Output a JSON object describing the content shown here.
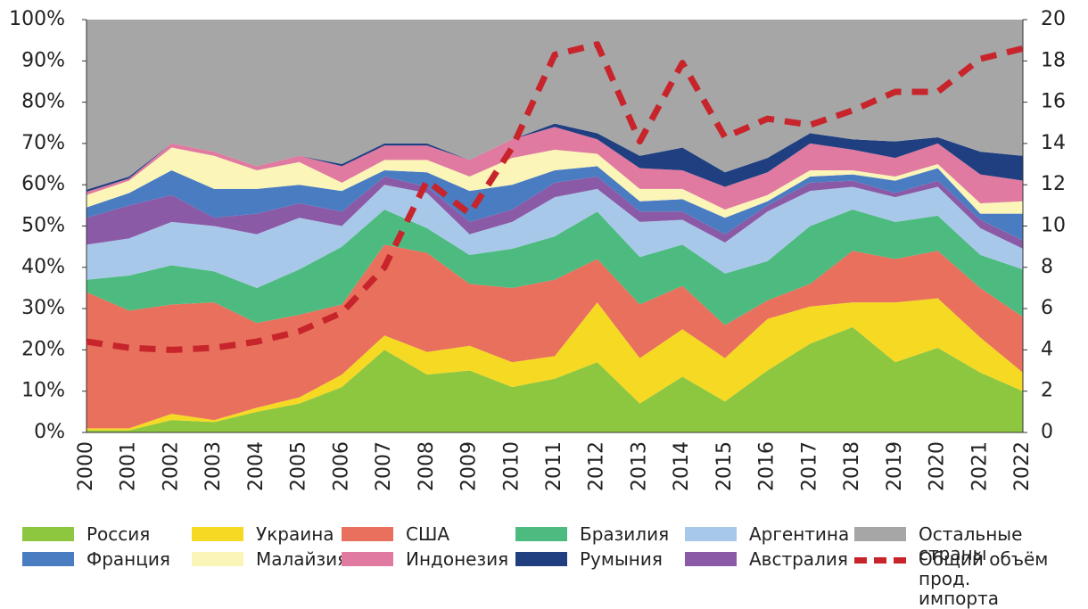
{
  "chart_data": {
    "type": "stacked_area",
    "categories": [
      "2000",
      "2001",
      "2002",
      "2003",
      "2004",
      "2005",
      "2006",
      "2007",
      "2008",
      "2009",
      "2010",
      "2011",
      "2012",
      "2013",
      "2014",
      "2015",
      "2016",
      "2017",
      "2018",
      "2019",
      "2020",
      "2021",
      "2022"
    ],
    "series": [
      {
        "name": "Россия",
        "color": "#8dc63f",
        "values": [
          0.5,
          0.5,
          3,
          2.5,
          5,
          7,
          11,
          20,
          14,
          15,
          11,
          13,
          17,
          7,
          13.5,
          7.5,
          15,
          21.5,
          25.5,
          17,
          20.5,
          14.5,
          10
        ]
      },
      {
        "name": "Украина",
        "color": "#f5d923",
        "values": [
          0.5,
          0.5,
          1.5,
          0.5,
          1,
          1.5,
          3,
          3.5,
          5.5,
          6,
          6,
          5.5,
          14.5,
          11,
          11.5,
          10.5,
          12.5,
          9,
          6,
          14.5,
          12,
          8.5,
          4.5
        ]
      },
      {
        "name": "США",
        "color": "#e8705c",
        "values": [
          33,
          28.5,
          26.5,
          28.5,
          20.5,
          20,
          17,
          22,
          24,
          15,
          18,
          18.5,
          10.5,
          13,
          10.5,
          8,
          4.5,
          5.5,
          12.5,
          10.5,
          11.5,
          12,
          13.5
        ]
      },
      {
        "name": "Бразилия",
        "color": "#4dbb7f",
        "values": [
          3,
          8.5,
          9.5,
          7.5,
          8.5,
          11,
          14,
          8.5,
          6,
          7,
          9.5,
          10.5,
          11.5,
          11.5,
          10,
          12.5,
          9.5,
          14,
          10,
          9,
          8.5,
          8,
          11.5
        ]
      },
      {
        "name": "Аргентина",
        "color": "#a8c8ea",
        "values": [
          8.5,
          9,
          10.5,
          11,
          13,
          12.5,
          5,
          6,
          8.5,
          5,
          6.5,
          9.5,
          5.5,
          8.5,
          6,
          7.5,
          12,
          8.5,
          5.5,
          6,
          7,
          6.5,
          5
        ]
      },
      {
        "name": "Австралия",
        "color": "#8a5aa6",
        "values": [
          6.5,
          8,
          6.5,
          2,
          5,
          3.5,
          3.5,
          2,
          1.5,
          3,
          3,
          3.5,
          3,
          2.5,
          2,
          2,
          1.5,
          2,
          1.5,
          1,
          1.5,
          2,
          2
        ]
      },
      {
        "name": "Франция",
        "color": "#4a7cc2",
        "values": [
          2.5,
          3,
          6,
          7,
          6,
          4.5,
          5,
          1.5,
          3.5,
          7.5,
          6,
          3,
          2.5,
          2.5,
          3,
          4,
          1,
          1.5,
          1.5,
          3,
          3,
          1.5,
          6.5
        ]
      },
      {
        "name": "Малайзия",
        "color": "#fbf5b8",
        "values": [
          3,
          3,
          5.5,
          8,
          4.5,
          5.5,
          2,
          2.5,
          3,
          3.5,
          6.5,
          5,
          3,
          3,
          2.5,
          2,
          1.5,
          1.5,
          1,
          1,
          1,
          2.5,
          3
        ]
      },
      {
        "name": "Индонезия",
        "color": "#e07aa0",
        "values": [
          0.8,
          0.5,
          1,
          1,
          1,
          1.5,
          4,
          3.5,
          3.5,
          4,
          4.5,
          5.5,
          3.5,
          5,
          4.5,
          5.5,
          5.5,
          6.5,
          5,
          4.5,
          5,
          7,
          5
        ]
      },
      {
        "name": "Румыния",
        "color": "#1f3f80",
        "values": [
          0.5,
          0.5,
          0,
          0,
          0,
          0,
          0.5,
          0.5,
          0.5,
          0,
          0,
          0.8,
          1.5,
          3,
          5.5,
          3.5,
          3.5,
          2.5,
          2.5,
          4,
          1.5,
          5.5,
          6
        ]
      },
      {
        "name": "Остальные страны",
        "color": "#a6a6a6",
        "values": [
          41.2,
          38,
          30,
          32,
          35.5,
          33,
          35,
          30,
          30,
          34,
          29,
          25.2,
          27.5,
          33,
          31,
          37,
          33.5,
          27.5,
          29,
          29.5,
          28.5,
          32,
          33
        ]
      },
      {
        "name": "Общий объём прод. импорта",
        "color": "#c8242b",
        "type": "line",
        "axis": "y2",
        "dashed": true,
        "values": [
          4.4,
          4.1,
          4.0,
          4.1,
          4.4,
          4.9,
          5.8,
          8.0,
          12.2,
          10.6,
          13.8,
          18.3,
          18.8,
          14.1,
          17.9,
          14.3,
          15.2,
          14.9,
          15.6,
          16.5,
          16.5,
          18.1,
          18.6
        ]
      }
    ],
    "ylim": [
      0,
      100
    ],
    "yticks": [
      {
        "value": 0,
        "label": "0%"
      },
      {
        "value": 10,
        "label": "10%"
      },
      {
        "value": 20,
        "label": "20%"
      },
      {
        "value": 30,
        "label": "30%"
      },
      {
        "value": 40,
        "label": "40%"
      },
      {
        "value": 50,
        "label": "50%"
      },
      {
        "value": 60,
        "label": "60%"
      },
      {
        "value": 70,
        "label": "70%"
      },
      {
        "value": 80,
        "label": "80%"
      },
      {
        "value": 90,
        "label": "90%"
      },
      {
        "value": 100,
        "label": "100%"
      }
    ],
    "y2lim": [
      0,
      20
    ],
    "y2ticks": [
      0,
      2,
      4,
      6,
      8,
      10,
      12,
      14,
      16,
      18,
      20
    ]
  }
}
